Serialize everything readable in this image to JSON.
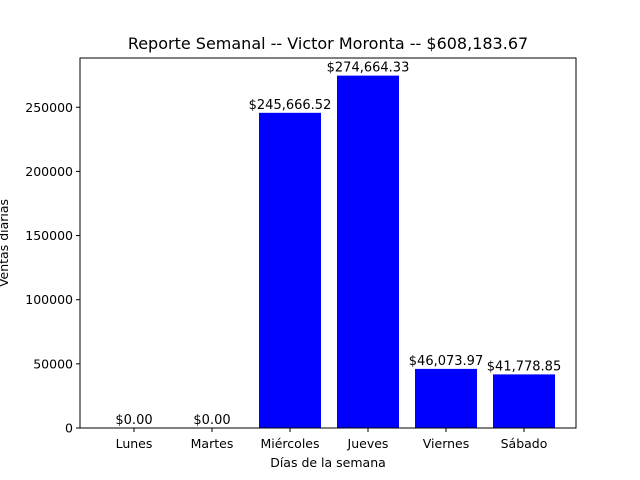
{
  "chart_data": {
    "type": "bar",
    "title": "Reporte Semanal -- Victor Moronta -- $608,183.67",
    "xlabel": "Días de la semana",
    "ylabel": "Ventas diarias",
    "categories": [
      "Lunes",
      "Martes",
      "Miércoles",
      "Jueves",
      "Viernes",
      "Sábado"
    ],
    "values": [
      0,
      0,
      245666.52,
      274664.33,
      46073.97,
      41778.85
    ],
    "data_labels": [
      "$0.00",
      "$0.00",
      "$245,666.52",
      "$274,664.33",
      "$46,073.97",
      "$41,778.85"
    ],
    "ylim": [
      0,
      288397.55
    ],
    "yticks": [
      0,
      50000,
      100000,
      150000,
      200000,
      250000
    ],
    "ytick_labels": [
      "0",
      "50000",
      "100000",
      "150000",
      "200000",
      "250000"
    ],
    "bar_color": "#0000ff",
    "grid": false
  }
}
